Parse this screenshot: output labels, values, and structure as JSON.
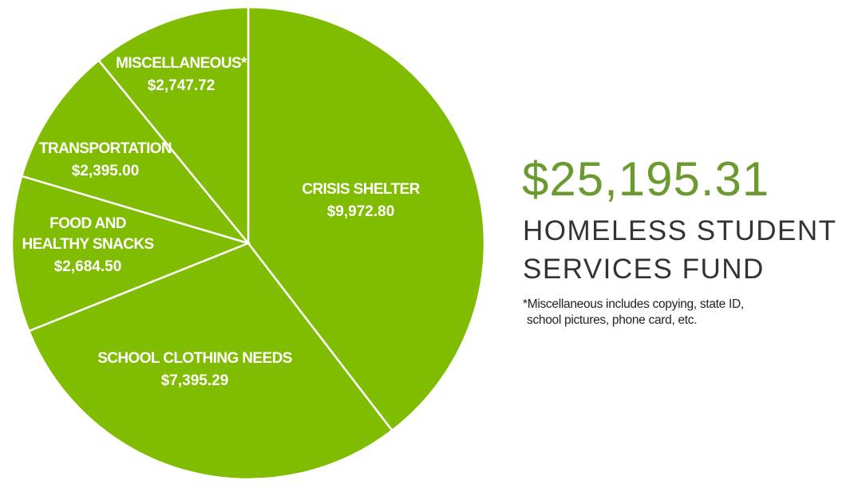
{
  "chart_data": {
    "type": "pie",
    "slices": [
      {
        "label": "CRISIS SHELTER",
        "label_lines": [
          "CRISIS SHELTER"
        ],
        "value": 9972.8,
        "value_label": "$9,972.80"
      },
      {
        "label": "SCHOOL CLOTHING NEEDS",
        "label_lines": [
          "SCHOOL CLOTHING NEEDS"
        ],
        "value": 7395.29,
        "value_label": "$7,395.29"
      },
      {
        "label": "FOOD AND HEALTHY SNACKS",
        "label_lines": [
          "FOOD AND",
          "HEALTHY SNACKS"
        ],
        "value": 2684.5,
        "value_label": "$2,684.50"
      },
      {
        "label": "TRANSPORTATION",
        "label_lines": [
          "TRANSPORTATION"
        ],
        "value": 2395.0,
        "value_label": "$2,395.00"
      },
      {
        "label": "MISCELLANEOUS*",
        "label_lines": [
          "MISCELLANEOUS*"
        ],
        "value": 2747.72,
        "value_label": "$2,747.72"
      }
    ],
    "slice_color": "#80bc00",
    "start": "top, clockwise"
  },
  "summary": {
    "total": "$25,195.31",
    "title_line1": "HOMELESS STUDENT",
    "title_line2": "SERVICES FUND",
    "footnote_line1": "*Miscellaneous includes copying, state ID,",
    "footnote_line2": "school pictures, phone card, etc."
  },
  "colors": {
    "pie_green": "#80bc00",
    "total_green": "#6b9a2e",
    "title_gray": "#333333"
  }
}
